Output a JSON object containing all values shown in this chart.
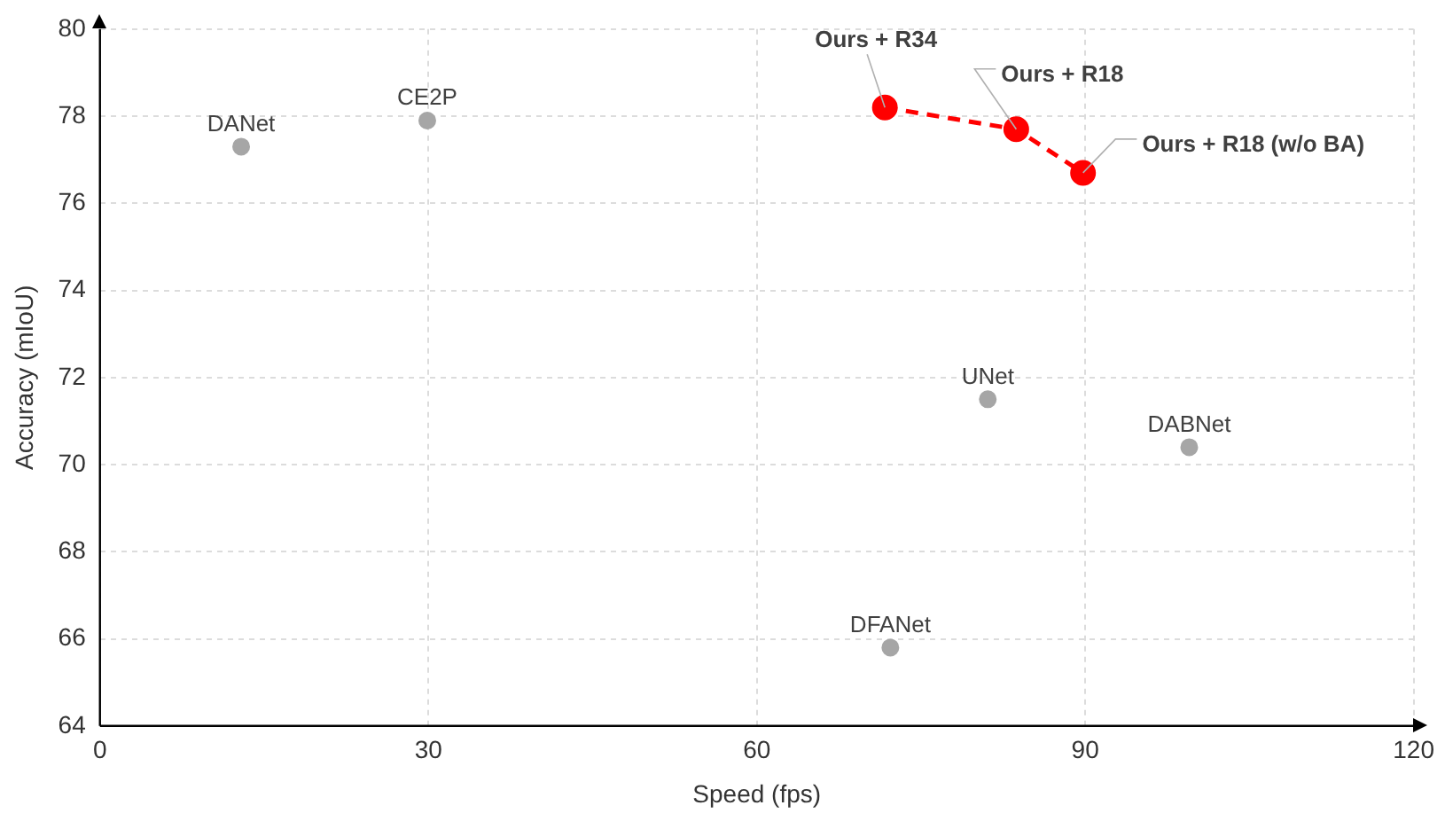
{
  "chart_data": {
    "type": "scatter",
    "xlabel": "Speed (fps)",
    "ylabel": "Accuracy (mIoU)",
    "xlim": [
      0,
      120
    ],
    "xticks": [
      0,
      30,
      60,
      90,
      120
    ],
    "ylim": [
      64,
      80
    ],
    "yticks": [
      64,
      66,
      68,
      70,
      72,
      74,
      76,
      78,
      80
    ],
    "grid": true,
    "legend": false,
    "marker": "circle",
    "series": [
      {
        "type": "scatter",
        "color": "#a6a6a6",
        "x": [
          12.9,
          29.9,
          81.1,
          99.5,
          72.2
        ],
        "values": [
          77.3,
          77.9,
          71.5,
          70.4,
          65.8
        ]
      },
      {
        "type": "line",
        "color": "#ff0000",
        "line_style": "dashed",
        "x": [
          71.7,
          83.7,
          89.8
        ],
        "values": [
          78.2,
          77.7,
          76.7
        ]
      }
    ],
    "annotations": [
      {
        "text": "DANet",
        "x": 12.9,
        "y": 77.3
      },
      {
        "text": "CE2P",
        "x": 29.9,
        "y": 77.9
      },
      {
        "text": "UNet",
        "x": 81.1,
        "y": 71.5
      },
      {
        "text": "DABNet",
        "x": 99.5,
        "y": 70.4
      },
      {
        "text": "DFANet",
        "x": 72.2,
        "y": 65.8
      },
      {
        "text": "Ours + R34",
        "x": 71.7,
        "y": 78.2
      },
      {
        "text": "Ours + R18",
        "x": 83.7,
        "y": 77.7
      },
      {
        "text": "Ours + R18 (w/o BA)",
        "x": 89.8,
        "y": 76.7
      }
    ]
  }
}
